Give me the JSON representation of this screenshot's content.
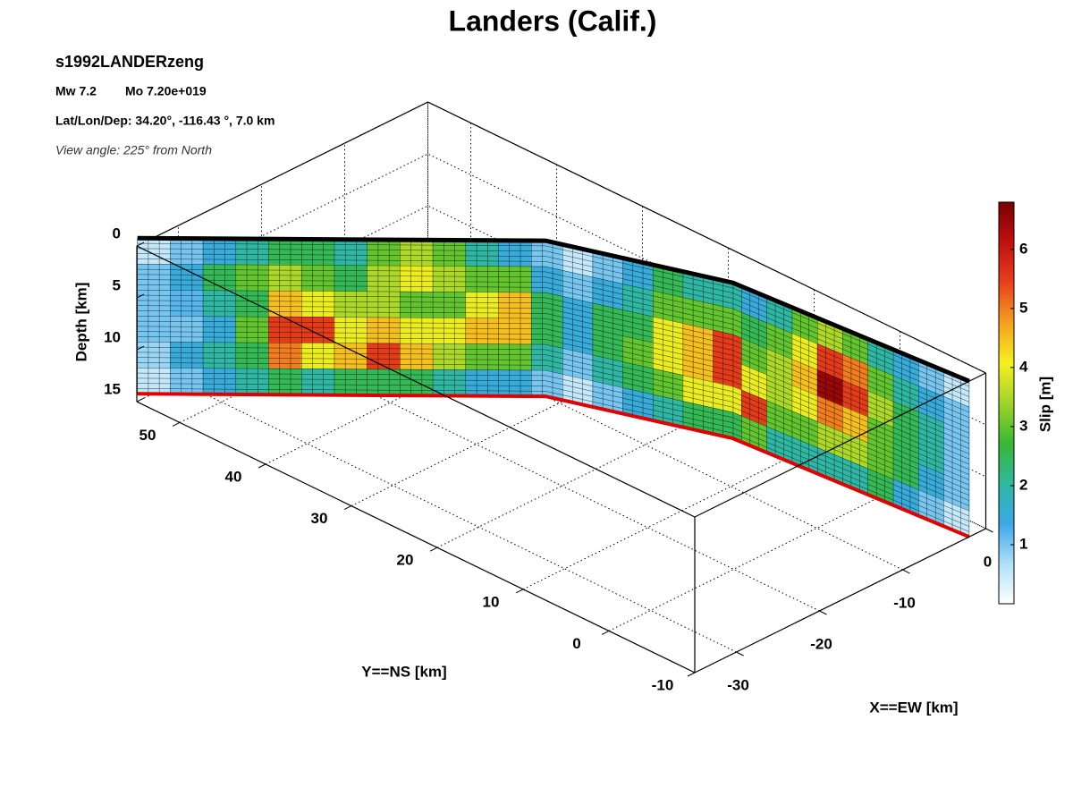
{
  "chart_data": {
    "type": "fault-slip-3d",
    "title": "Landers (Calif.)",
    "subtitle": "s1992LANDERzeng",
    "magnitude": "Mw 7.2",
    "moment": "Mo 7.20e+019",
    "location": "Lat/Lon/Dep: 34.20°, -116.43 °, 7.0 km",
    "view_angle": "View angle: 225° from North",
    "xlabel": "X==EW [km]",
    "ylabel": "Y==NS [km]",
    "zlabel": "Depth [km]",
    "colorbar_label": "Slip [m]",
    "xlim": [
      -35,
      0
    ],
    "ylim": [
      -10,
      55
    ],
    "zlim": [
      0,
      15
    ],
    "xticks": [
      0,
      -10,
      -20,
      -30
    ],
    "yticks": [
      -10,
      0,
      10,
      20,
      30,
      40,
      50
    ],
    "zticks": [
      0,
      5,
      10,
      15
    ],
    "clim": [
      0,
      6.8
    ],
    "cticks": [
      1,
      2,
      3,
      4,
      5,
      6
    ],
    "colormap": [
      "#ffffff",
      "#aee0f7",
      "#3aa8e8",
      "#2fb8a0",
      "#38b832",
      "#9fd42a",
      "#f5f020",
      "#f5a020",
      "#e8401c",
      "#c01010",
      "#7a0000"
    ],
    "grid": true,
    "fault_trace": {
      "x": [
        -34,
        -10,
        -4,
        -2
      ],
      "y": [
        55.9,
        31.6,
        15.6,
        -10
      ]
    },
    "slip": [
      [
        0.5,
        1.0,
        1.5,
        2.0,
        2.5,
        2.5,
        2.0,
        3.0,
        3.5,
        3.0,
        2.0,
        1.5,
        1.0,
        0.5,
        1.0,
        1.5,
        2.5,
        2.0,
        2.0,
        1.5,
        2.0,
        3.0,
        3.5,
        3.0,
        2.0,
        1.5,
        1.0,
        0.5
      ],
      [
        1.0,
        1.5,
        2.5,
        3.0,
        3.5,
        3.0,
        2.5,
        3.5,
        4.0,
        3.5,
        3.0,
        3.0,
        1.5,
        1.0,
        1.5,
        2.0,
        3.0,
        3.0,
        3.0,
        2.5,
        3.0,
        4.0,
        5.5,
        5.0,
        3.0,
        2.0,
        1.5,
        1.0
      ],
      [
        1.0,
        1.2,
        2.0,
        2.5,
        4.5,
        4.0,
        3.5,
        3.5,
        3.0,
        3.0,
        4.0,
        4.5,
        2.5,
        1.5,
        2.5,
        2.5,
        4.0,
        4.5,
        5.5,
        3.0,
        3.5,
        4.5,
        6.5,
        5.5,
        3.5,
        2.5,
        2.0,
        1.0
      ],
      [
        1.0,
        1.0,
        1.5,
        3.0,
        5.5,
        5.5,
        4.0,
        4.5,
        4.0,
        4.0,
        4.5,
        4.5,
        2.5,
        1.5,
        2.5,
        3.0,
        4.0,
        4.5,
        5.5,
        4.0,
        3.5,
        4.0,
        5.0,
        4.5,
        3.0,
        2.5,
        2.0,
        1.0
      ],
      [
        0.8,
        1.5,
        2.0,
        2.5,
        5.0,
        4.0,
        4.5,
        5.5,
        4.5,
        3.5,
        3.0,
        3.0,
        2.0,
        1.0,
        2.0,
        2.5,
        3.0,
        4.0,
        4.0,
        5.5,
        3.0,
        3.0,
        3.5,
        3.5,
        3.0,
        2.5,
        1.5,
        1.0
      ],
      [
        0.5,
        1.0,
        1.5,
        2.0,
        2.5,
        2.0,
        2.5,
        2.5,
        2.5,
        2.0,
        1.5,
        1.5,
        1.0,
        0.5,
        1.0,
        1.5,
        2.0,
        2.5,
        2.5,
        3.0,
        2.0,
        2.0,
        2.0,
        2.0,
        2.5,
        1.5,
        1.0,
        0.5
      ]
    ]
  }
}
